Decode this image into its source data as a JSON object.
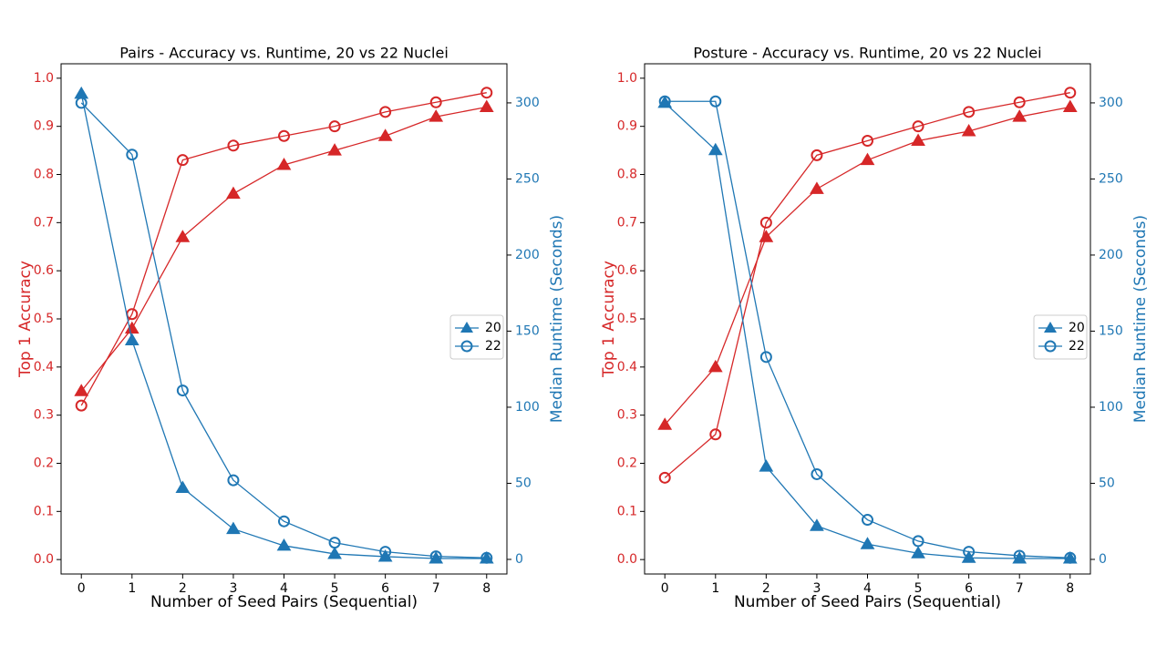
{
  "chart_data": [
    {
      "type": "line",
      "title": "Pairs - Accuracy vs. Runtime, 20 vs 22 Nuclei",
      "x_label": "Number of Seed Pairs (Sequential)",
      "y_label": "Top 1 Accuracy",
      "y2_label": "Median Runtime (Seconds)",
      "y_color": "#d62728",
      "y2_color": "#1f77b4",
      "x": [
        0,
        1,
        2,
        3,
        4,
        5,
        6,
        7,
        8
      ],
      "xlim": [
        -0.4,
        8.4
      ],
      "xticks": [
        0,
        1,
        2,
        3,
        4,
        5,
        6,
        7,
        8
      ],
      "ylim": [
        -0.03,
        1.03
      ],
      "yticks": [
        {
          "value": 0,
          "label": "0.0"
        },
        0.1,
        0.2,
        0.3,
        0.4,
        0.5,
        0.6,
        0.7,
        0.8,
        0.9,
        {
          "value": 1,
          "label": "1.0"
        }
      ],
      "y2lim": [
        -9.6,
        325.7
      ],
      "y2ticks": [
        0,
        50,
        100,
        150,
        200,
        250,
        300
      ],
      "legend": "center right",
      "series": [
        {
          "color": "#d62728",
          "marker": "triangle",
          "values": [
            0.35,
            0.48,
            0.67,
            0.76,
            0.82,
            0.85,
            0.88,
            0.92,
            0.94
          ]
        },
        {
          "color": "#d62728",
          "marker": "circle",
          "values": [
            0.32,
            0.51,
            0.83,
            0.86,
            0.88,
            0.9,
            0.93,
            0.95,
            0.97
          ]
        },
        {
          "name": "20",
          "color": "#1f77b4",
          "marker": "triangle",
          "axis": "y2",
          "values": [
            306,
            144,
            47,
            20,
            9,
            3.6,
            1.8,
            0.6,
            0.6
          ]
        },
        {
          "name": "22",
          "color": "#1f77b4",
          "marker": "circle",
          "axis": "y2",
          "values": [
            300,
            266,
            111,
            52,
            25,
            11,
            5,
            2,
            1
          ]
        }
      ]
    },
    {
      "type": "line",
      "title": "Posture - Accuracy vs. Runtime, 20 vs 22 Nuclei",
      "x_label": "Number of Seed Pairs (Sequential)",
      "y_label": "Top 1 Accuracy",
      "y2_label": "Median Runtime (Seconds)",
      "y_color": "#d62728",
      "y2_color": "#1f77b4",
      "x": [
        0,
        1,
        2,
        3,
        4,
        5,
        6,
        7,
        8
      ],
      "xlim": [
        -0.4,
        8.4
      ],
      "xticks": [
        0,
        1,
        2,
        3,
        4,
        5,
        6,
        7,
        8
      ],
      "ylim": [
        -0.03,
        1.03
      ],
      "yticks": [
        {
          "value": 0,
          "label": "0.0"
        },
        0.1,
        0.2,
        0.3,
        0.4,
        0.5,
        0.6,
        0.7,
        0.8,
        0.9,
        {
          "value": 1,
          "label": "1.0"
        }
      ],
      "y2lim": [
        -9.6,
        325.7
      ],
      "y2ticks": [
        0,
        50,
        100,
        150,
        200,
        250,
        300
      ],
      "legend": "center right",
      "series": [
        {
          "color": "#d62728",
          "marker": "triangle",
          "values": [
            0.28,
            0.4,
            0.67,
            0.77,
            0.83,
            0.87,
            0.89,
            0.92,
            0.94
          ]
        },
        {
          "color": "#d62728",
          "marker": "circle",
          "values": [
            0.17,
            0.26,
            0.7,
            0.84,
            0.87,
            0.9,
            0.93,
            0.95,
            0.97
          ]
        },
        {
          "name": "20",
          "color": "#1f77b4",
          "marker": "triangle",
          "axis": "y2",
          "values": [
            300,
            269,
            61,
            22,
            10,
            4,
            1,
            0.6,
            0.6
          ]
        },
        {
          "name": "22",
          "color": "#1f77b4",
          "marker": "circle",
          "axis": "y2",
          "values": [
            301,
            301,
            133,
            56,
            26,
            12,
            5,
            2.4,
            1
          ]
        }
      ]
    }
  ]
}
